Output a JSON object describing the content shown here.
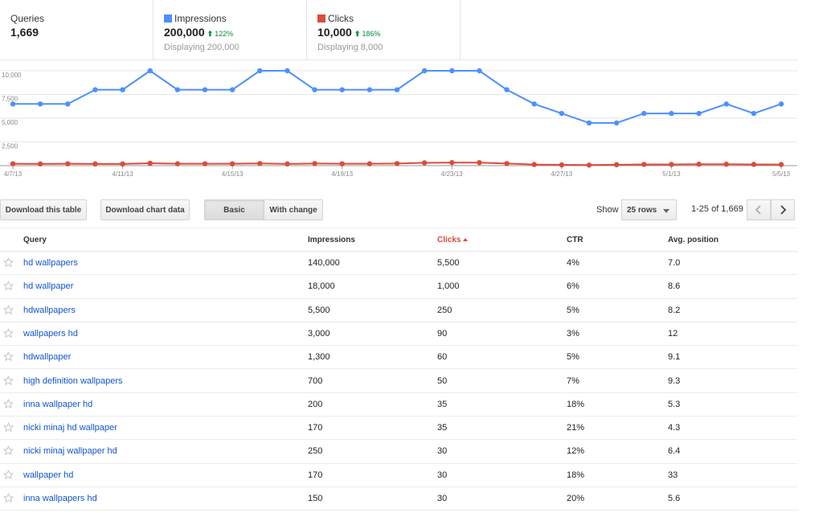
{
  "metrics": [
    {
      "label": "Queries",
      "value": "1,669",
      "sub": "",
      "delta": "",
      "color": ""
    },
    {
      "label": "Impressions",
      "value": "200,000",
      "delta": "122%",
      "sub": "Displaying 200,000",
      "color": "#4d90fe"
    },
    {
      "label": "Clicks",
      "value": "10,000",
      "delta": "186%",
      "sub": "Displaying 8,000",
      "color": "#dd4b39"
    }
  ],
  "chart_data": {
    "type": "line",
    "x": [
      "4/7/13",
      "4/8/13",
      "4/9/13",
      "4/10/13",
      "4/11/13",
      "4/12/13",
      "4/13/13",
      "4/14/13",
      "4/15/13",
      "4/16/13",
      "4/17/13",
      "4/18/13",
      "4/19/13",
      "4/20/13",
      "4/21/13",
      "4/22/13",
      "4/23/13",
      "4/24/13",
      "4/25/13",
      "4/26/13",
      "4/27/13",
      "4/28/13",
      "4/29/13",
      "4/30/13",
      "5/1/13",
      "5/2/13",
      "5/3/13",
      "5/4/13",
      "5/5/13"
    ],
    "xticks": [
      "4/7/13",
      "4/11/13",
      "4/15/13",
      "4/19/13",
      "4/23/13",
      "4/27/13",
      "5/1/13",
      "5/5/13"
    ],
    "yticks": [
      "10,000",
      "7,500",
      "5,000",
      "2,500"
    ],
    "ylim": [
      0,
      10000
    ],
    "grid": true,
    "series": [
      {
        "name": "Impressions",
        "color": "#4d90fe",
        "values": [
          6500,
          6500,
          6500,
          8000,
          8000,
          10000,
          8000,
          8000,
          8000,
          10000,
          10000,
          8000,
          8000,
          8000,
          8000,
          10000,
          10000,
          10000,
          8000,
          6500,
          5500,
          4500,
          4500,
          5500,
          5500,
          5500,
          6500,
          5500,
          6500
        ]
      },
      {
        "name": "Clicks",
        "color": "#dd4b39",
        "values": [
          200,
          180,
          200,
          180,
          180,
          250,
          200,
          200,
          200,
          230,
          180,
          220,
          200,
          200,
          220,
          300,
          320,
          320,
          220,
          120,
          80,
          60,
          100,
          130,
          130,
          150,
          150,
          130,
          120
        ]
      }
    ]
  },
  "toolbar": {
    "download_table": "Download this table",
    "download_chart": "Download chart data",
    "basic": "Basic",
    "with_change": "With change",
    "show_label": "Show",
    "rows_select": "25 rows",
    "pager": "1-25 of 1,669"
  },
  "table": {
    "headers": {
      "query": "Query",
      "impressions": "Impressions",
      "clicks": "Clicks",
      "ctr": "CTR",
      "position": "Avg. position"
    },
    "rows": [
      {
        "query": "hd wallpapers",
        "impressions": "140,000",
        "clicks": "5,500",
        "ctr": "4%",
        "position": "7.0"
      },
      {
        "query": "hd wallpaper",
        "impressions": "18,000",
        "clicks": "1,000",
        "ctr": "6%",
        "position": "8.6"
      },
      {
        "query": "hdwallpapers",
        "impressions": "5,500",
        "clicks": "250",
        "ctr": "5%",
        "position": "8.2"
      },
      {
        "query": "wallpapers hd",
        "impressions": "3,000",
        "clicks": "90",
        "ctr": "3%",
        "position": "12"
      },
      {
        "query": "hdwallpaper",
        "impressions": "1,300",
        "clicks": "60",
        "ctr": "5%",
        "position": "9.1"
      },
      {
        "query": "high definition wallpapers",
        "impressions": "700",
        "clicks": "50",
        "ctr": "7%",
        "position": "9.3"
      },
      {
        "query": "inna wallpaper hd",
        "impressions": "200",
        "clicks": "35",
        "ctr": "18%",
        "position": "5.3"
      },
      {
        "query": "nicki minaj hd wallpaper",
        "impressions": "170",
        "clicks": "35",
        "ctr": "21%",
        "position": "4.3"
      },
      {
        "query": "nicki minaj wallpaper hd",
        "impressions": "250",
        "clicks": "30",
        "ctr": "12%",
        "position": "6.4"
      },
      {
        "query": "wallpaper hd",
        "impressions": "170",
        "clicks": "30",
        "ctr": "18%",
        "position": "33"
      },
      {
        "query": "inna wallpapers hd",
        "impressions": "150",
        "clicks": "30",
        "ctr": "20%",
        "position": "5.6"
      }
    ]
  }
}
